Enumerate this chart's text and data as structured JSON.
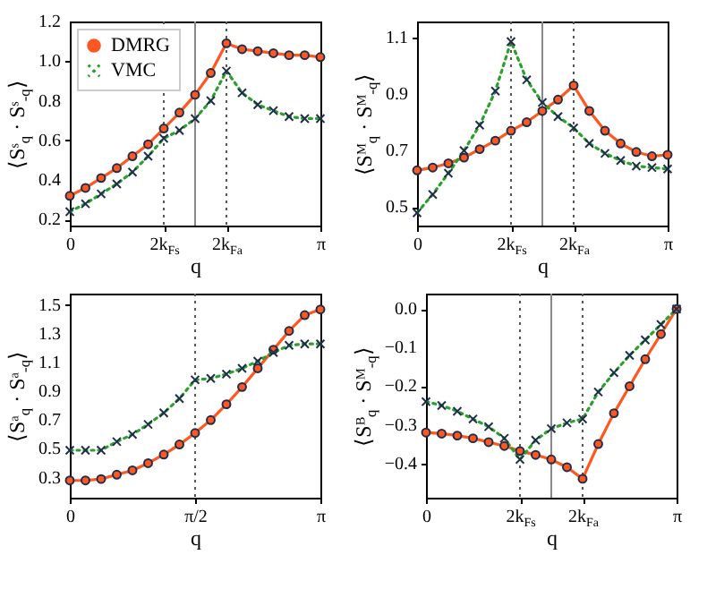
{
  "chart_data": [
    {
      "type": "line",
      "xlabel": "q",
      "ylabel": "⟨Sˢ$_{q}$ · Sˢ$_{-q}$⟩",
      "legend": "top left",
      "categories": [
        "0",
        null,
        null,
        null,
        null,
        null,
        "2k$_{Fs}$",
        null,
        null,
        null,
        "2k$_{Fa}$",
        null,
        null,
        null,
        null,
        null,
        "π"
      ],
      "ylim": [
        0.17,
        1.2
      ],
      "yticks": [
        0.2,
        0.4,
        0.6,
        0.8,
        {
          "value": 1,
          "label": "1.0"
        },
        1.2
      ],
      "ref_lines": [
        {
          "axis": "x",
          "value": "2k$_{Fs}$",
          "line_style": "dotted",
          "color": "#555555"
        },
        {
          "axis": "x",
          "line_style": "solid",
          "color": "#888888"
        },
        {
          "axis": "x",
          "value": "2k$_{Fa}$",
          "line_style": "dotted",
          "color": "#555555"
        }
      ],
      "series": [
        {
          "name": "DMRG",
          "color": "#ff5722",
          "marker": "circle",
          "line_style": "solid",
          "values": [
            0.32,
            0.36,
            0.41,
            0.46,
            0.52,
            0.58,
            0.66,
            0.74,
            0.83,
            0.94,
            1.09,
            1.06,
            1.05,
            1.04,
            1.03,
            1.03,
            1.02
          ]
        },
        {
          "name": "VMC",
          "color": "#2ca02c",
          "marker": "cross",
          "line_style": "dotted",
          "values": [
            0.24,
            0.28,
            0.33,
            0.38,
            0.44,
            0.52,
            0.61,
            0.65,
            0.71,
            0.8,
            0.95,
            0.84,
            0.78,
            0.75,
            0.72,
            0.71,
            0.71
          ]
        }
      ]
    },
    {
      "type": "line",
      "xlabel": "q",
      "ylabel": "⟨Sᴹ$_{q}$ · Sᴹ$_{-q}$⟩",
      "categories": [
        "0",
        null,
        null,
        null,
        null,
        null,
        "2k$_{Fs}$",
        null,
        null,
        null,
        "2k$_{Fa}$",
        null,
        null,
        null,
        null,
        null,
        "π"
      ],
      "ylim": [
        0.435,
        1.156
      ],
      "yticks": [
        0.5,
        0.7,
        0.9,
        1.1
      ],
      "ref_lines": [
        {
          "axis": "x",
          "value": "2k$_{Fs}$",
          "line_style": "dotted",
          "color": "#555555"
        },
        {
          "axis": "x",
          "line_style": "solid",
          "color": "#888888"
        },
        {
          "axis": "x",
          "value": "2k$_{Fa}$",
          "line_style": "dotted",
          "color": "#555555"
        }
      ],
      "series": [
        {
          "color": "#ff5722",
          "marker": "circle",
          "line_style": "solid",
          "values": [
            0.63,
            0.64,
            0.655,
            0.675,
            0.705,
            0.735,
            0.77,
            0.8,
            0.84,
            0.88,
            0.93,
            0.84,
            0.77,
            0.725,
            0.695,
            0.68,
            0.685
          ]
        },
        {
          "color": "#2ca02c",
          "marker": "cross",
          "line_style": "dotted",
          "values": [
            0.48,
            0.545,
            0.62,
            0.7,
            0.79,
            0.91,
            1.085,
            0.95,
            0.87,
            0.82,
            0.78,
            0.725,
            0.69,
            0.665,
            0.645,
            0.64,
            0.635
          ]
        }
      ]
    },
    {
      "type": "line",
      "xlabel": "q",
      "ylabel": "⟨Sᵃ$_{q}$ · Sᵃ$_{-q}$⟩",
      "categories": [
        "0",
        null,
        null,
        null,
        null,
        null,
        null,
        null,
        "π/2",
        null,
        null,
        null,
        null,
        null,
        null,
        null,
        "π"
      ],
      "ylim": [
        0.16,
        1.58
      ],
      "yticks": [
        0.3,
        0.5,
        0.7,
        0.9,
        1.1,
        1.3,
        1.5
      ],
      "ref_lines": [
        {
          "axis": "x",
          "value": "π/2",
          "line_style": "dotted",
          "color": "#555555"
        }
      ],
      "series": [
        {
          "color": "#ff5722",
          "marker": "circle",
          "line_style": "solid",
          "values": [
            0.28,
            0.28,
            0.29,
            0.32,
            0.35,
            0.4,
            0.46,
            0.53,
            0.61,
            0.7,
            0.81,
            0.93,
            1.06,
            1.19,
            1.32,
            1.43,
            1.47
          ]
        },
        {
          "color": "#2ca02c",
          "marker": "cross",
          "line_style": "dotted",
          "values": [
            0.49,
            0.49,
            0.49,
            0.55,
            0.6,
            0.67,
            0.75,
            0.85,
            0.98,
            0.99,
            1.02,
            1.06,
            1.11,
            1.17,
            1.22,
            1.23,
            1.23
          ]
        }
      ]
    },
    {
      "type": "line",
      "xlabel": "q",
      "ylabel": "⟨Sᴮ$_{q}$ · Sᴹ$_{-q}$⟩",
      "categories": [
        "0",
        null,
        null,
        null,
        null,
        null,
        "2k$_{Fs}$",
        null,
        null,
        null,
        "2k$_{Fa}$",
        null,
        null,
        null,
        null,
        null,
        "π"
      ],
      "ylim": [
        -0.489,
        0.04
      ],
      "yticks": [
        {
          "value": -0.4,
          "label": "−0.4"
        },
        {
          "value": -0.3,
          "label": "−0.3"
        },
        {
          "value": -0.2,
          "label": "−0.2"
        },
        {
          "value": -0.1,
          "label": "−0.1"
        },
        {
          "value": 0,
          "label": "0.0"
        }
      ],
      "ref_lines": [
        {
          "axis": "x",
          "value": "2k$_{Fs}$",
          "line_style": "dotted",
          "color": "#555555"
        },
        {
          "axis": "x",
          "line_style": "solid",
          "color": "#888888"
        },
        {
          "axis": "x",
          "value": "2k$_{Fa}$",
          "line_style": "dotted",
          "color": "#555555"
        }
      ],
      "series": [
        {
          "color": "#ff5722",
          "marker": "circle",
          "line_style": "solid",
          "values": [
            -0.32,
            -0.323,
            -0.328,
            -0.335,
            -0.345,
            -0.355,
            -0.368,
            -0.378,
            -0.39,
            -0.41,
            -0.44,
            -0.35,
            -0.27,
            -0.2,
            -0.13,
            -0.065,
            0.0
          ]
        },
        {
          "color": "#2ca02c",
          "marker": "cross",
          "line_style": "dotted",
          "values": [
            -0.24,
            -0.25,
            -0.265,
            -0.285,
            -0.305,
            -0.335,
            -0.39,
            -0.34,
            -0.31,
            -0.295,
            -0.285,
            -0.215,
            -0.165,
            -0.12,
            -0.08,
            -0.04,
            0.0
          ]
        }
      ]
    }
  ]
}
